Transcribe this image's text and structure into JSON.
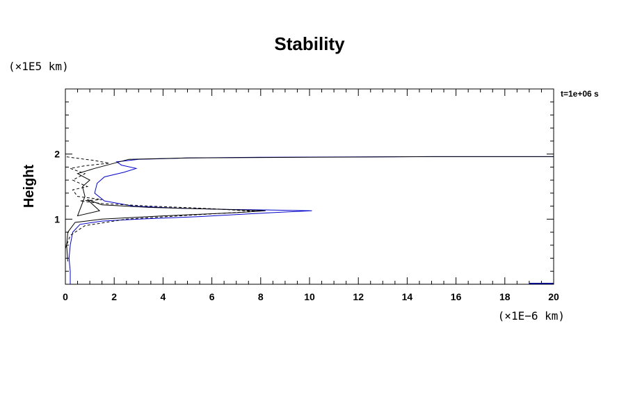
{
  "chart_data": {
    "type": "line",
    "title": "Stability",
    "ylabel": "Height",
    "xlabel": "",
    "x_unit": "(×1E−6 km)",
    "y_unit": "(×1E5 km)",
    "time_label": "t=1e+06 s",
    "xlim": [
      0,
      20
    ],
    "ylim": [
      0,
      3
    ],
    "x_ticks": [
      "0",
      "2",
      "4",
      "6",
      "8",
      "10",
      "12",
      "14",
      "16",
      "18",
      "20"
    ],
    "x_tick_values": [
      0,
      2,
      4,
      6,
      8,
      10,
      12,
      14,
      16,
      18,
      20
    ],
    "y_ticks": [
      "1",
      "2"
    ],
    "y_tick_values": [
      1,
      2
    ],
    "series": [
      {
        "style": "solid",
        "color": "#0000cc",
        "points": [
          [
            0.2,
            0.0
          ],
          [
            0.2,
            0.2
          ],
          [
            0.15,
            0.4
          ],
          [
            0.2,
            0.6
          ],
          [
            0.3,
            0.8
          ],
          [
            0.6,
            0.92
          ],
          [
            1.5,
            0.97
          ],
          [
            3,
            1.0
          ],
          [
            5.5,
            1.04
          ],
          [
            7.5,
            1.08
          ],
          [
            9,
            1.11
          ],
          [
            10.1,
            1.13
          ],
          [
            8.5,
            1.14
          ],
          [
            6.5,
            1.15
          ],
          [
            4.5,
            1.17
          ],
          [
            2.8,
            1.2
          ],
          [
            1.6,
            1.28
          ],
          [
            1.2,
            1.4
          ],
          [
            1.3,
            1.55
          ],
          [
            1.6,
            1.65
          ],
          [
            2.4,
            1.72
          ],
          [
            2.9,
            1.78
          ],
          [
            2.3,
            1.83
          ],
          [
            2.1,
            1.88
          ],
          [
            3,
            1.92
          ],
          [
            5,
            1.94
          ],
          [
            8,
            1.95
          ],
          [
            15,
            1.96
          ],
          [
            20,
            1.96
          ]
        ]
      },
      {
        "style": "solid",
        "color": "#000000",
        "points": [
          [
            0.1,
            0.35
          ],
          [
            0.05,
            0.6
          ],
          [
            0.1,
            0.8
          ],
          [
            0.4,
            0.95
          ],
          [
            1.5,
            1.0
          ],
          [
            4,
            1.05
          ],
          [
            7,
            1.1
          ],
          [
            8.2,
            1.13
          ],
          [
            6.5,
            1.15
          ],
          [
            3.5,
            1.18
          ],
          [
            1.5,
            1.22
          ],
          [
            0.9,
            1.3
          ],
          [
            1.4,
            1.13
          ],
          [
            0.5,
            1.05
          ],
          [
            0.8,
            1.35
          ],
          [
            0.7,
            1.5
          ],
          [
            1.0,
            1.6
          ],
          [
            0.5,
            1.7
          ],
          [
            1.2,
            1.78
          ],
          [
            1.8,
            1.84
          ],
          [
            2.6,
            1.92
          ],
          [
            5,
            1.94
          ],
          [
            10,
            1.95
          ],
          [
            15,
            1.96
          ],
          [
            20,
            1.96
          ]
        ]
      },
      {
        "style": "dashed",
        "color": "#000000",
        "points": [
          [
            0.0,
            0.55
          ],
          [
            0.2,
            0.75
          ],
          [
            0.8,
            0.9
          ],
          [
            2.5,
            1.0
          ],
          [
            5.5,
            1.07
          ],
          [
            7.8,
            1.12
          ],
          [
            6.0,
            1.16
          ],
          [
            3.5,
            1.2
          ],
          [
            1.5,
            1.24
          ],
          [
            0.6,
            1.28
          ],
          [
            1.5,
            1.3
          ],
          [
            0.5,
            1.35
          ],
          [
            0.3,
            1.45
          ],
          [
            0.9,
            1.5
          ],
          [
            0.3,
            1.6
          ],
          [
            0.8,
            1.7
          ],
          [
            0.2,
            1.78
          ],
          [
            0.8,
            1.82
          ],
          [
            1.8,
            1.86
          ],
          [
            1.2,
            1.9
          ],
          [
            0.4,
            1.94
          ],
          [
            0.0,
            1.96
          ]
        ]
      }
    ]
  }
}
